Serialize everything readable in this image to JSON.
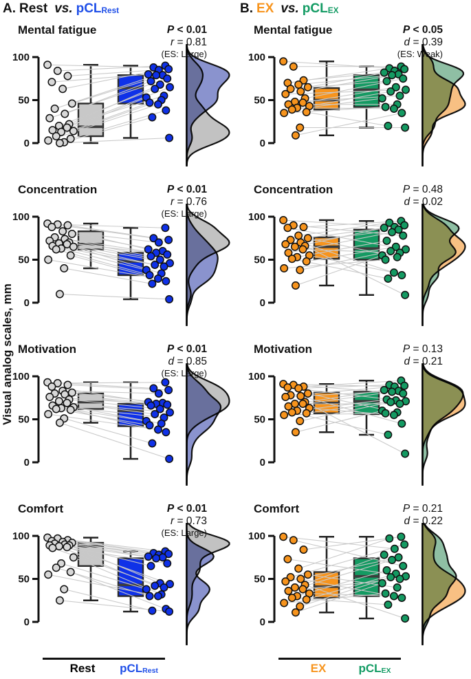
{
  "headers": {
    "a": {
      "prefix": "A.",
      "left": "Rest",
      "vs": "vs.",
      "pcl": "pCL",
      "sub": "Rest"
    },
    "b": {
      "prefix": "B.",
      "left": "EX",
      "vs": "vs.",
      "pcl": "pCL",
      "sub": "EX"
    }
  },
  "ylabel": "Visual analog scales, mm",
  "yticks": [
    0,
    50,
    100
  ],
  "footer": {
    "a": {
      "left": "Rest",
      "pcl": "pCL",
      "sub": "Rest"
    },
    "b": {
      "left": "EX",
      "pcl": "pCL",
      "sub": "EX"
    }
  },
  "colors": {
    "header_blue": "#1F4FE8",
    "header_orange": "#F7941D",
    "header_green": "#129B63",
    "box_gray": "#C8C8C8",
    "box_blue": "#0F31E8",
    "box_orange": "#F7941D",
    "box_green": "#149A62",
    "point_gray": "#D8D8D8",
    "pair_line": "#C9C9C9",
    "density_gray": "#C2C2C2",
    "density_blue": "#8A93CE",
    "density_orange": "#F8C083",
    "density_green": "#8FBFA4",
    "axis_black": "#111111"
  },
  "chart_data": [
    {
      "id": "A1",
      "column": "A",
      "type": "raincloud-paired-box",
      "ylim": [
        0,
        100
      ],
      "title": "Mental fatigue",
      "stats": [
        {
          "var": "P",
          "rest": " < 0.01",
          "bold": true
        },
        {
          "var": "r",
          "rest": " = 0.81"
        }
      ],
      "es": "(ES: Large)",
      "groups": [
        {
          "name": "Rest",
          "box": {
            "low": 0,
            "q1": 8,
            "median": 19,
            "q3": 46,
            "high": 91
          },
          "values": [
            91,
            84,
            78,
            71,
            63,
            46,
            40,
            34,
            29,
            22,
            20,
            18,
            15,
            14,
            13,
            8,
            5,
            3,
            1,
            0
          ]
        },
        {
          "name": "pCL_Rest",
          "box": {
            "low": 6,
            "q1": 46,
            "median": 64,
            "q3": 79,
            "high": 90
          },
          "values": [
            90,
            88,
            86,
            85,
            80,
            79,
            79,
            75,
            72,
            68,
            65,
            63,
            55,
            53,
            50,
            47,
            45,
            38,
            30,
            6
          ]
        }
      ],
      "pairing": [
        1,
        0,
        2,
        4,
        3,
        5,
        6,
        8,
        7,
        9,
        11,
        10,
        12,
        14,
        13,
        15,
        17,
        16,
        18,
        19
      ]
    },
    {
      "id": "B1",
      "column": "B",
      "type": "raincloud-paired-box",
      "ylim": [
        0,
        100
      ],
      "title": "Mental fatigue",
      "stats": [
        {
          "var": "P",
          "rest": " < 0.05",
          "bold": true
        },
        {
          "var": "d",
          "rest": " = 0.39"
        }
      ],
      "es": "(ES: Weak)",
      "groups": [
        {
          "name": "EX",
          "box": {
            "low": 9,
            "q1": 39,
            "median": 50,
            "q3": 64,
            "high": 95
          },
          "values": [
            95,
            89,
            73,
            70,
            68,
            65,
            63,
            60,
            57,
            52,
            48,
            47,
            45,
            43,
            41,
            39,
            36,
            35,
            18,
            9
          ]
        },
        {
          "name": "pCL_EX",
          "box": {
            "low": 18,
            "q1": 42,
            "median": 62,
            "q3": 79,
            "high": 89
          },
          "values": [
            89,
            87,
            86,
            84,
            82,
            80,
            79,
            75,
            72,
            65,
            62,
            60,
            55,
            52,
            45,
            42,
            40,
            35,
            20,
            18
          ]
        }
      ],
      "pairing": [
        2,
        0,
        4,
        1,
        6,
        3,
        8,
        5,
        10,
        7,
        12,
        9,
        14,
        11,
        16,
        13,
        18,
        15,
        19,
        17
      ]
    },
    {
      "id": "A2",
      "column": "A",
      "type": "raincloud-paired-box",
      "ylim": [
        0,
        100
      ],
      "title": "Concentration",
      "stats": [
        {
          "var": "P",
          "rest": " < 0.01",
          "bold": true
        },
        {
          "var": "r",
          "rest": " = 0.76"
        }
      ],
      "es": "(ES: Large)",
      "groups": [
        {
          "name": "Rest",
          "box": {
            "low": 40,
            "q1": 62,
            "median": 68,
            "q3": 83,
            "high": 92
          },
          "values": [
            92,
            91,
            90,
            88,
            83,
            80,
            76,
            74,
            72,
            70,
            69,
            68,
            66,
            65,
            63,
            62,
            55,
            50,
            40,
            10
          ]
        },
        {
          "name": "pCL_Rest",
          "box": {
            "low": 4,
            "q1": 32,
            "median": 48,
            "q3": 58,
            "high": 87
          },
          "values": [
            87,
            75,
            73,
            70,
            62,
            60,
            58,
            56,
            54,
            50,
            46,
            44,
            42,
            38,
            34,
            32,
            28,
            25,
            22,
            4
          ]
        }
      ],
      "pairing": [
        1,
        0,
        2,
        4,
        3,
        5,
        6,
        8,
        7,
        9,
        11,
        10,
        12,
        14,
        13,
        15,
        17,
        16,
        18,
        19
      ]
    },
    {
      "id": "B2",
      "column": "B",
      "type": "raincloud-paired-box",
      "ylim": [
        0,
        100
      ],
      "title": "Concentration",
      "stats": [
        {
          "var": "P",
          "rest": " = 0.48",
          "bold": false
        },
        {
          "var": "d",
          "rest": " = 0.02"
        }
      ],
      "es": null,
      "groups": [
        {
          "name": "EX",
          "box": {
            "low": 20,
            "q1": 51,
            "median": 65,
            "q3": 76,
            "high": 96
          },
          "values": [
            96,
            90,
            88,
            87,
            78,
            75,
            73,
            70,
            68,
            66,
            65,
            62,
            58,
            55,
            53,
            51,
            48,
            40,
            38,
            20
          ]
        },
        {
          "name": "pCL_EX",
          "box": {
            "low": 9,
            "q1": 50,
            "median": 63,
            "q3": 85,
            "high": 95
          },
          "values": [
            95,
            93,
            90,
            88,
            87,
            85,
            82,
            78,
            72,
            65,
            62,
            60,
            58,
            55,
            53,
            50,
            35,
            32,
            28,
            9
          ]
        }
      ],
      "pairing": [
        3,
        7,
        0,
        10,
        1,
        14,
        2,
        17,
        5,
        19,
        4,
        12,
        6,
        16,
        8,
        18,
        9,
        15,
        11,
        13
      ]
    },
    {
      "id": "A3",
      "column": "A",
      "type": "raincloud-paired-box",
      "ylim": [
        0,
        100
      ],
      "title": "Motivation",
      "stats": [
        {
          "var": "P",
          "rest": " < 0.01",
          "bold": true
        },
        {
          "var": "d",
          "rest": " = 0.85"
        }
      ],
      "es": "(ES: Large)",
      "groups": [
        {
          "name": "Rest",
          "box": {
            "low": 46,
            "q1": 62,
            "median": 70,
            "q3": 80,
            "high": 93
          },
          "values": [
            93,
            92,
            90,
            88,
            83,
            81,
            80,
            79,
            76,
            73,
            71,
            69,
            66,
            64,
            63,
            62,
            61,
            56,
            51,
            46
          ]
        },
        {
          "name": "pCL_Rest",
          "box": {
            "low": 4,
            "q1": 42,
            "median": 60,
            "q3": 68,
            "high": 93
          },
          "values": [
            93,
            86,
            84,
            80,
            70,
            69,
            68,
            67,
            66,
            62,
            58,
            56,
            52,
            48,
            45,
            43,
            38,
            35,
            22,
            4
          ]
        }
      ],
      "pairing": [
        1,
        0,
        2,
        4,
        3,
        5,
        6,
        8,
        7,
        9,
        11,
        10,
        12,
        14,
        13,
        15,
        17,
        16,
        18,
        19
      ]
    },
    {
      "id": "B3",
      "column": "B",
      "type": "raincloud-paired-box",
      "ylim": [
        0,
        100
      ],
      "title": "Motivation",
      "stats": [
        {
          "var": "P",
          "rest": " = 0.13",
          "bold": false
        },
        {
          "var": "d",
          "rest": " = 0.21"
        }
      ],
      "es": null,
      "groups": [
        {
          "name": "EX",
          "box": {
            "low": 35,
            "q1": 57,
            "median": 69,
            "q3": 81,
            "high": 91
          },
          "values": [
            91,
            90,
            88,
            87,
            86,
            80,
            78,
            77,
            76,
            70,
            68,
            68,
            65,
            63,
            60,
            58,
            57,
            55,
            48,
            35
          ]
        },
        {
          "name": "pCL_EX",
          "box": {
            "low": 32,
            "q1": 56,
            "median": 71,
            "q3": 82,
            "high": 95
          },
          "values": [
            95,
            90,
            89,
            88,
            84,
            83,
            82,
            80,
            73,
            72,
            71,
            70,
            68,
            60,
            58,
            57,
            55,
            45,
            32,
            10
          ]
        }
      ],
      "pairing": [
        3,
        7,
        0,
        10,
        1,
        14,
        2,
        17,
        5,
        19,
        4,
        12,
        6,
        16,
        8,
        18,
        9,
        15,
        11,
        13
      ]
    },
    {
      "id": "A4",
      "column": "A",
      "type": "raincloud-paired-box",
      "ylim": [
        0,
        100
      ],
      "title": "Comfort",
      "stats": [
        {
          "var": "P",
          "rest": " < 0.01",
          "bold": true
        },
        {
          "var": "r",
          "rest": " = 0.73"
        }
      ],
      "es": "(ES: Large)",
      "groups": [
        {
          "name": "Rest",
          "box": {
            "low": 25,
            "q1": 65,
            "median": 88,
            "q3": 92,
            "high": 98
          },
          "values": [
            98,
            97,
            95,
            94,
            93,
            92,
            91,
            90,
            89,
            89,
            88,
            87,
            86,
            75,
            68,
            63,
            58,
            55,
            38,
            25
          ]
        },
        {
          "name": "pCL_Rest",
          "box": {
            "low": 12,
            "q1": 30,
            "median": 43,
            "q3": 74,
            "high": 82
          },
          "values": [
            82,
            80,
            79,
            78,
            76,
            75,
            74,
            68,
            65,
            45,
            44,
            42,
            40,
            38,
            32,
            30,
            30,
            15,
            13,
            12
          ]
        }
      ],
      "pairing": [
        1,
        0,
        2,
        4,
        3,
        5,
        6,
        8,
        7,
        9,
        11,
        10,
        12,
        14,
        13,
        15,
        17,
        16,
        18,
        19
      ]
    },
    {
      "id": "B4",
      "column": "B",
      "type": "raincloud-paired-box",
      "ylim": [
        0,
        100
      ],
      "title": "Comfort",
      "stats": [
        {
          "var": "P",
          "rest": " = 0.21",
          "bold": false
        },
        {
          "var": "d",
          "rest": " = 0.22"
        }
      ],
      "es": null,
      "groups": [
        {
          "name": "EX",
          "box": {
            "low": 11,
            "q1": 28,
            "median": 41,
            "q3": 58,
            "high": 99
          },
          "values": [
            99,
            95,
            84,
            73,
            62,
            55,
            52,
            50,
            47,
            43,
            40,
            38,
            36,
            33,
            30,
            28,
            26,
            22,
            18,
            11
          ]
        },
        {
          "name": "pCL_EX",
          "box": {
            "low": 4,
            "q1": 30,
            "median": 53,
            "q3": 74,
            "high": 99
          },
          "values": [
            99,
            97,
            90,
            85,
            78,
            75,
            72,
            65,
            60,
            56,
            53,
            52,
            50,
            45,
            40,
            33,
            30,
            28,
            20,
            4
          ]
        }
      ],
      "pairing": [
        3,
        7,
        0,
        10,
        1,
        14,
        2,
        17,
        5,
        19,
        4,
        12,
        6,
        16,
        8,
        18,
        9,
        15,
        11,
        13
      ]
    }
  ]
}
